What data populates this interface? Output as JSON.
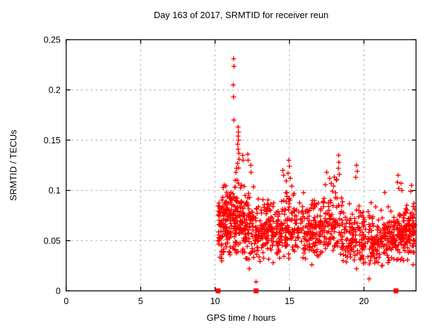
{
  "title": "Day 163 of 2017, SRMTID for receiver reun",
  "colors": {
    "points": "#ff0000",
    "border": "#000000",
    "grid": "#b0b0b0",
    "text": "#000000",
    "background": "#ffffff"
  },
  "chart_data": {
    "type": "scatter",
    "title": "Day 163 of 2017, SRMTID for receiver reun",
    "xlabel": "GPS time / hours",
    "ylabel": "SRMTID / TECUs",
    "xlim": [
      0,
      23.5
    ],
    "ylim": [
      0,
      0.25
    ],
    "xticks": [
      0,
      5,
      10,
      15,
      20
    ],
    "xtick_labels": [
      "0",
      "5",
      "10",
      "15",
      "20"
    ],
    "yticks": [
      0,
      0.05,
      0.1,
      0.15,
      0.2,
      0.25
    ],
    "ytick_labels": [
      "0",
      "0.05",
      "0.1",
      "0.15",
      "0.2",
      "0.25"
    ],
    "grid": true,
    "grid_style": "dashed",
    "legend": "none",
    "marker": "plus",
    "marker_color": "#ff0000",
    "description": "Dense red plus-marker scatter from ~10.2 h to ~23.45 h, bulk between 0.035 and 0.10 TECUs, outlier spike column near 11.3-11.7 h reaching 0.231, smaller spikes near 12, 15, 18.3, 19.5, 22.3 and 23.2 h; three red squares on the x-axis (y=0) near 10.2, 12.75 and 22.15 h",
    "zero_markers_x": [
      10.2,
      12.75,
      22.15
    ],
    "outliers": [
      [
        11.25,
        0.231
      ],
      [
        11.27,
        0.2235
      ],
      [
        11.22,
        0.205
      ],
      [
        11.24,
        0.193
      ],
      [
        11.26,
        0.17
      ],
      [
        11.55,
        0.163
      ],
      [
        11.57,
        0.158
      ],
      [
        11.55,
        0.154
      ],
      [
        11.58,
        0.15
      ],
      [
        11.52,
        0.146
      ],
      [
        11.55,
        0.141
      ],
      [
        11.6,
        0.137
      ],
      [
        11.62,
        0.131
      ],
      [
        11.5,
        0.127
      ],
      [
        11.45,
        0.122
      ],
      [
        11.4,
        0.118
      ],
      [
        11.35,
        0.11
      ],
      [
        11.86,
        0.135
      ],
      [
        11.88,
        0.13
      ],
      [
        12.2,
        0.136
      ],
      [
        12.22,
        0.13
      ],
      [
        12.4,
        0.125
      ],
      [
        12.42,
        0.118
      ],
      [
        14.55,
        0.12
      ],
      [
        14.6,
        0.115
      ],
      [
        14.95,
        0.13
      ],
      [
        15.0,
        0.124
      ],
      [
        14.9,
        0.117
      ],
      [
        15.05,
        0.112
      ],
      [
        17.5,
        0.118
      ],
      [
        17.7,
        0.112
      ],
      [
        17.8,
        0.107
      ],
      [
        18.3,
        0.135
      ],
      [
        18.32,
        0.128
      ],
      [
        18.28,
        0.122
      ],
      [
        18.35,
        0.116
      ],
      [
        19.5,
        0.125
      ],
      [
        19.55,
        0.119
      ],
      [
        19.45,
        0.113
      ],
      [
        21.4,
        0.098
      ],
      [
        22.3,
        0.115
      ],
      [
        22.25,
        0.108
      ],
      [
        22.35,
        0.102
      ],
      [
        22.5,
        0.107
      ],
      [
        22.55,
        0.1
      ],
      [
        23.2,
        0.105
      ],
      [
        23.15,
        0.099
      ],
      [
        12.75,
        0.009
      ],
      [
        12.3,
        0.022
      ],
      [
        20.35,
        0.012
      ],
      [
        19.5,
        0.022
      ],
      [
        13.9,
        0.028
      ],
      [
        16.5,
        0.026
      ],
      [
        18.6,
        0.03
      ],
      [
        21.2,
        0.025
      ],
      [
        23.3,
        0.026
      ]
    ],
    "cloud_segments": [
      {
        "x0": 10.2,
        "x1": 10.6,
        "n": 60,
        "mean": 0.066,
        "sd": 0.018,
        "lo": 0.028,
        "hi": 0.105
      },
      {
        "x0": 10.6,
        "x1": 11.1,
        "n": 75,
        "mean": 0.068,
        "sd": 0.018,
        "lo": 0.03,
        "hi": 0.11
      },
      {
        "x0": 11.1,
        "x1": 11.8,
        "n": 95,
        "mean": 0.074,
        "sd": 0.022,
        "lo": 0.032,
        "hi": 0.125
      },
      {
        "x0": 11.8,
        "x1": 12.6,
        "n": 95,
        "mean": 0.064,
        "sd": 0.018,
        "lo": 0.03,
        "hi": 0.115
      },
      {
        "x0": 12.6,
        "x1": 13.2,
        "n": 55,
        "mean": 0.058,
        "sd": 0.014,
        "lo": 0.028,
        "hi": 0.1
      },
      {
        "x0": 13.2,
        "x1": 14.4,
        "n": 115,
        "mean": 0.06,
        "sd": 0.014,
        "lo": 0.03,
        "hi": 0.105
      },
      {
        "x0": 14.4,
        "x1": 15.6,
        "n": 105,
        "mean": 0.064,
        "sd": 0.017,
        "lo": 0.03,
        "hi": 0.11
      },
      {
        "x0": 15.6,
        "x1": 17.2,
        "n": 135,
        "mean": 0.06,
        "sd": 0.014,
        "lo": 0.028,
        "hi": 0.1
      },
      {
        "x0": 17.2,
        "x1": 18.8,
        "n": 125,
        "mean": 0.066,
        "sd": 0.019,
        "lo": 0.03,
        "hi": 0.115
      },
      {
        "x0": 18.8,
        "x1": 20.4,
        "n": 125,
        "mean": 0.053,
        "sd": 0.013,
        "lo": 0.025,
        "hi": 0.095
      },
      {
        "x0": 20.4,
        "x1": 21.4,
        "n": 85,
        "mean": 0.048,
        "sd": 0.012,
        "lo": 0.022,
        "hi": 0.09
      },
      {
        "x0": 21.4,
        "x1": 22.6,
        "n": 115,
        "mean": 0.055,
        "sd": 0.012,
        "lo": 0.028,
        "hi": 0.095
      },
      {
        "x0": 22.6,
        "x1": 23.45,
        "n": 105,
        "mean": 0.061,
        "sd": 0.014,
        "lo": 0.03,
        "hi": 0.1
      }
    ],
    "seed": 163
  }
}
